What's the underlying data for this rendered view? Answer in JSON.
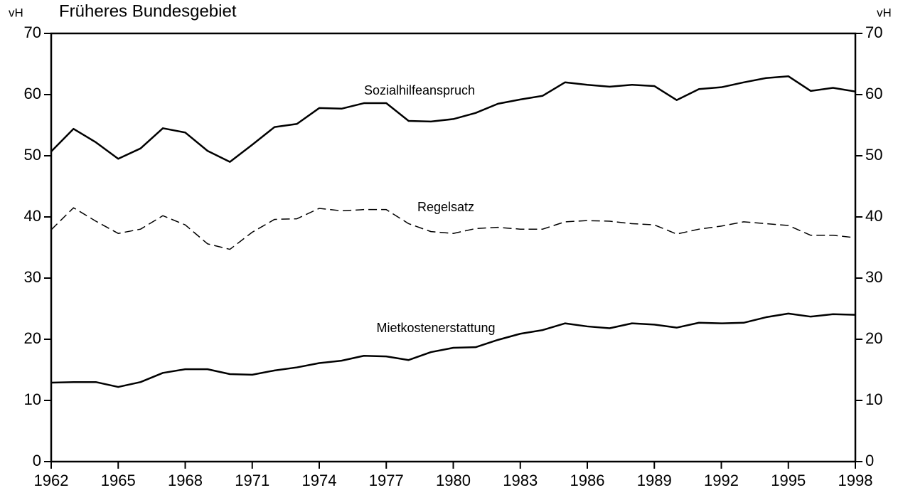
{
  "chart_data": {
    "type": "line",
    "title": "Früheres Bundesgebiet",
    "ylabel": "vH",
    "y2label": "vH",
    "x": [
      1962,
      1963,
      1964,
      1965,
      1966,
      1967,
      1968,
      1969,
      1970,
      1971,
      1972,
      1973,
      1974,
      1975,
      1976,
      1977,
      1978,
      1979,
      1980,
      1981,
      1982,
      1983,
      1984,
      1985,
      1986,
      1987,
      1988,
      1989,
      1990,
      1991,
      1992,
      1993,
      1994,
      1995,
      1996,
      1997,
      1998
    ],
    "series": [
      {
        "name": "Sozialhilfeanspruch",
        "color": "#000000",
        "dash": false,
        "values": [
          50.7,
          54.4,
          52.2,
          49.5,
          51.2,
          54.5,
          53.8,
          50.8,
          49.0,
          51.8,
          54.7,
          55.2,
          57.8,
          57.7,
          58.6,
          58.6,
          55.7,
          55.6,
          56.0,
          57.0,
          58.5,
          59.2,
          59.8,
          62.0,
          61.6,
          61.3,
          61.6,
          61.4,
          59.1,
          60.9,
          61.2,
          62.0,
          62.7,
          63.0,
          60.6,
          61.1,
          60.5
        ]
      },
      {
        "name": "Regelsatz",
        "color": "#000000",
        "dash": true,
        "values": [
          37.9,
          41.5,
          39.3,
          37.3,
          38.0,
          40.2,
          38.7,
          35.6,
          34.7,
          37.5,
          39.6,
          39.7,
          41.4,
          41.0,
          41.2,
          41.2,
          38.9,
          37.6,
          37.3,
          38.1,
          38.3,
          38.0,
          38.0,
          39.2,
          39.4,
          39.3,
          38.9,
          38.7,
          37.2,
          38.0,
          38.5,
          39.2,
          38.9,
          38.6,
          37.0,
          37.0,
          36.6
        ]
      },
      {
        "name": "Mietkostenerstattung",
        "color": "#000000",
        "dash": false,
        "values": [
          12.9,
          13.0,
          13.0,
          12.2,
          13.0,
          14.5,
          15.1,
          15.1,
          14.3,
          14.2,
          14.9,
          15.4,
          16.1,
          16.5,
          17.3,
          17.2,
          16.6,
          17.9,
          18.6,
          18.7,
          19.9,
          20.9,
          21.5,
          22.6,
          22.1,
          21.8,
          22.6,
          22.4,
          21.9,
          22.7,
          22.6,
          22.7,
          23.6,
          24.2,
          23.7,
          24.1,
          24.0
        ]
      }
    ],
    "xlim": [
      1962,
      1998
    ],
    "xticks": [
      1962,
      1965,
      1968,
      1971,
      1974,
      1977,
      1980,
      1983,
      1986,
      1989,
      1992,
      1995,
      1998
    ],
    "ylim": [
      0,
      70
    ],
    "yticks": [
      0,
      10,
      20,
      30,
      40,
      50,
      60,
      70
    ],
    "y2lim": [
      0,
      70
    ],
    "y2ticks": [
      0,
      10,
      20,
      30,
      40,
      50,
      60,
      70
    ]
  }
}
